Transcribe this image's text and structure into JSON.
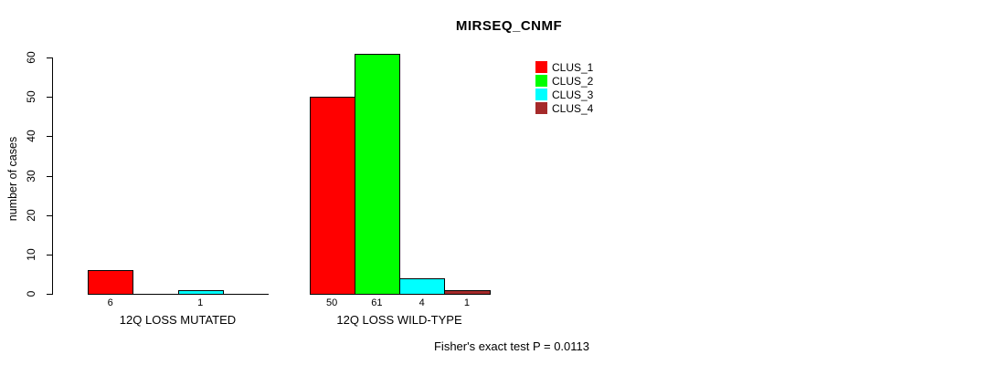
{
  "chart_data": {
    "type": "bar",
    "title": "MIRSEQ_CNMF",
    "ylabel": "number of cases",
    "xlabel": "",
    "ylim": [
      0,
      60
    ],
    "yticks": [
      0,
      10,
      20,
      30,
      40,
      50,
      60
    ],
    "grid": false,
    "legend_position": "top-right",
    "categories": [
      "12Q LOSS MUTATED",
      "12Q LOSS WILD-TYPE"
    ],
    "series": [
      {
        "name": "CLUS_1",
        "color": "#FF0000",
        "values": [
          6,
          50
        ]
      },
      {
        "name": "CLUS_2",
        "color": "#00FF00",
        "values": [
          0,
          61
        ]
      },
      {
        "name": "CLUS_3",
        "color": "#00FFFF",
        "values": [
          1,
          4
        ]
      },
      {
        "name": "CLUS_4",
        "color": "#A52A2A",
        "values": [
          0,
          1
        ]
      }
    ],
    "bar_value_labels": {
      "12Q LOSS MUTATED": [
        6,
        null,
        1,
        null
      ],
      "12Q LOSS WILD-TYPE": [
        50,
        61,
        4,
        1
      ]
    },
    "annotation": "Fisher's exact test P = 0.0113"
  }
}
